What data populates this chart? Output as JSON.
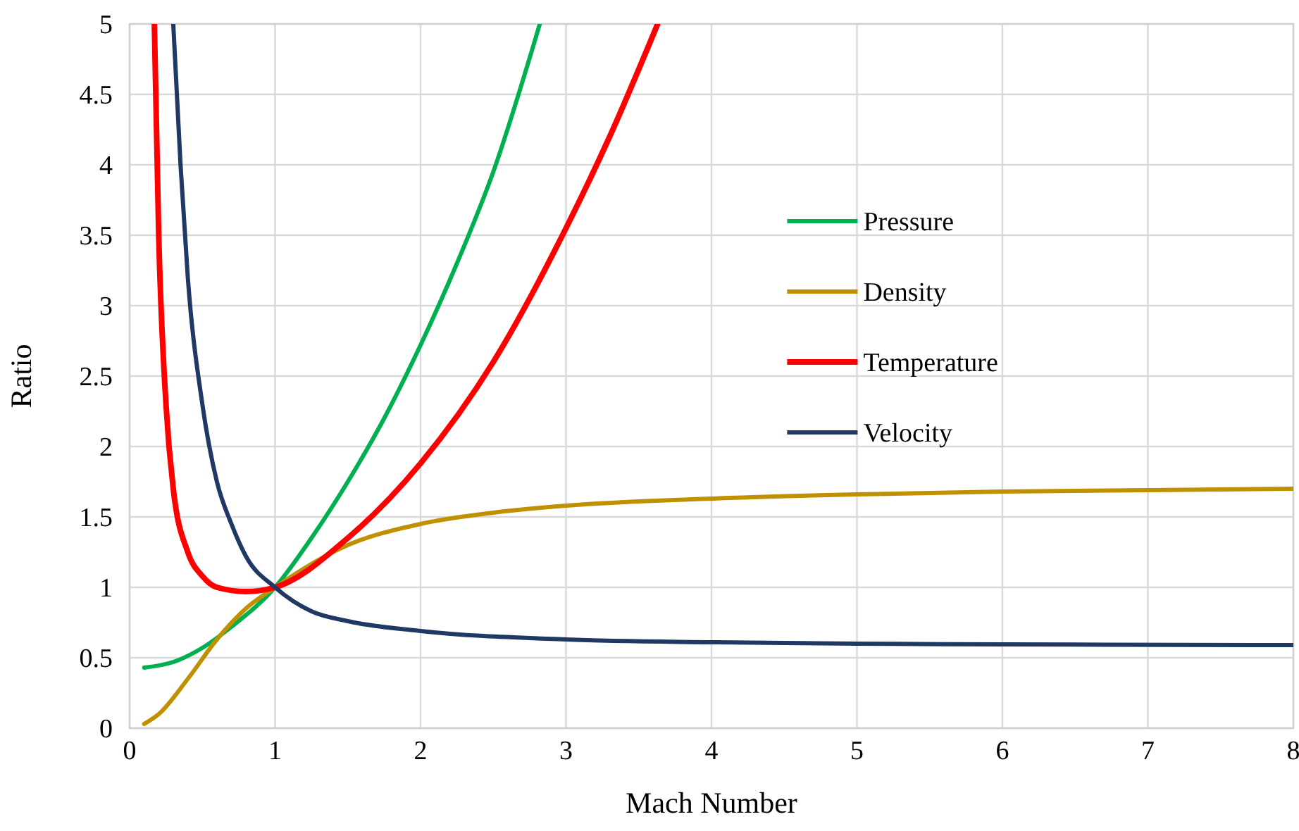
{
  "chart_data": {
    "type": "line",
    "xlabel": "Mach Number",
    "ylabel": "Ratio",
    "xlim": [
      0,
      8
    ],
    "xticks": [
      0,
      1,
      2,
      3,
      4,
      5,
      6,
      7,
      8
    ],
    "ylim": [
      0,
      5
    ],
    "yticks": [
      0,
      0.5,
      1,
      1.5,
      2,
      2.5,
      3,
      3.5,
      4,
      4.5,
      5
    ],
    "grid": true,
    "legend": "right",
    "marker": "none",
    "line_style": "solid",
    "series": [
      {
        "name": "Pressure",
        "color": "#00b050",
        "x": [
          0.1,
          0.3,
          0.5,
          0.7,
          1,
          1.25,
          1.5,
          1.75,
          2,
          2.25,
          2.5,
          2.82
        ],
        "values": [
          0.43,
          0.47,
          0.57,
          0.72,
          1.0,
          1.35,
          1.75,
          2.2,
          2.72,
          3.3,
          3.95,
          5
        ]
      },
      {
        "name": "Density",
        "color": "#bf9000",
        "x": [
          0.1,
          0.2,
          0.4,
          0.6,
          0.8,
          1,
          1.5,
          2,
          2.5,
          3,
          4,
          5,
          6,
          7,
          8
        ],
        "values": [
          0.03,
          0.1,
          0.35,
          0.63,
          0.85,
          1.0,
          1.3,
          1.45,
          1.53,
          1.58,
          1.63,
          1.66,
          1.68,
          1.69,
          1.7
        ]
      },
      {
        "name": "Temperature",
        "color": "#ff0000",
        "x": [
          0.17,
          0.2,
          0.25,
          0.3,
          0.4,
          0.5,
          0.6,
          0.8,
          1,
          1.5,
          2,
          2.5,
          3,
          3.3,
          3.63
        ],
        "values": [
          5,
          3.5,
          2.3,
          1.7,
          1.25,
          1.08,
          1.0,
          0.97,
          1.0,
          1.35,
          1.88,
          2.6,
          3.55,
          4.2,
          5
        ]
      },
      {
        "name": "Velocity",
        "color": "#1f3864",
        "x": [
          0.3,
          0.35,
          0.4,
          0.5,
          0.6,
          0.7,
          0.8,
          1,
          1.25,
          1.5,
          2,
          3,
          4,
          5,
          6,
          8
        ],
        "values": [
          5,
          4.0,
          3.2,
          2.3,
          1.75,
          1.45,
          1.22,
          1.0,
          0.83,
          0.76,
          0.69,
          0.63,
          0.61,
          0.6,
          0.595,
          0.59
        ]
      }
    ]
  }
}
